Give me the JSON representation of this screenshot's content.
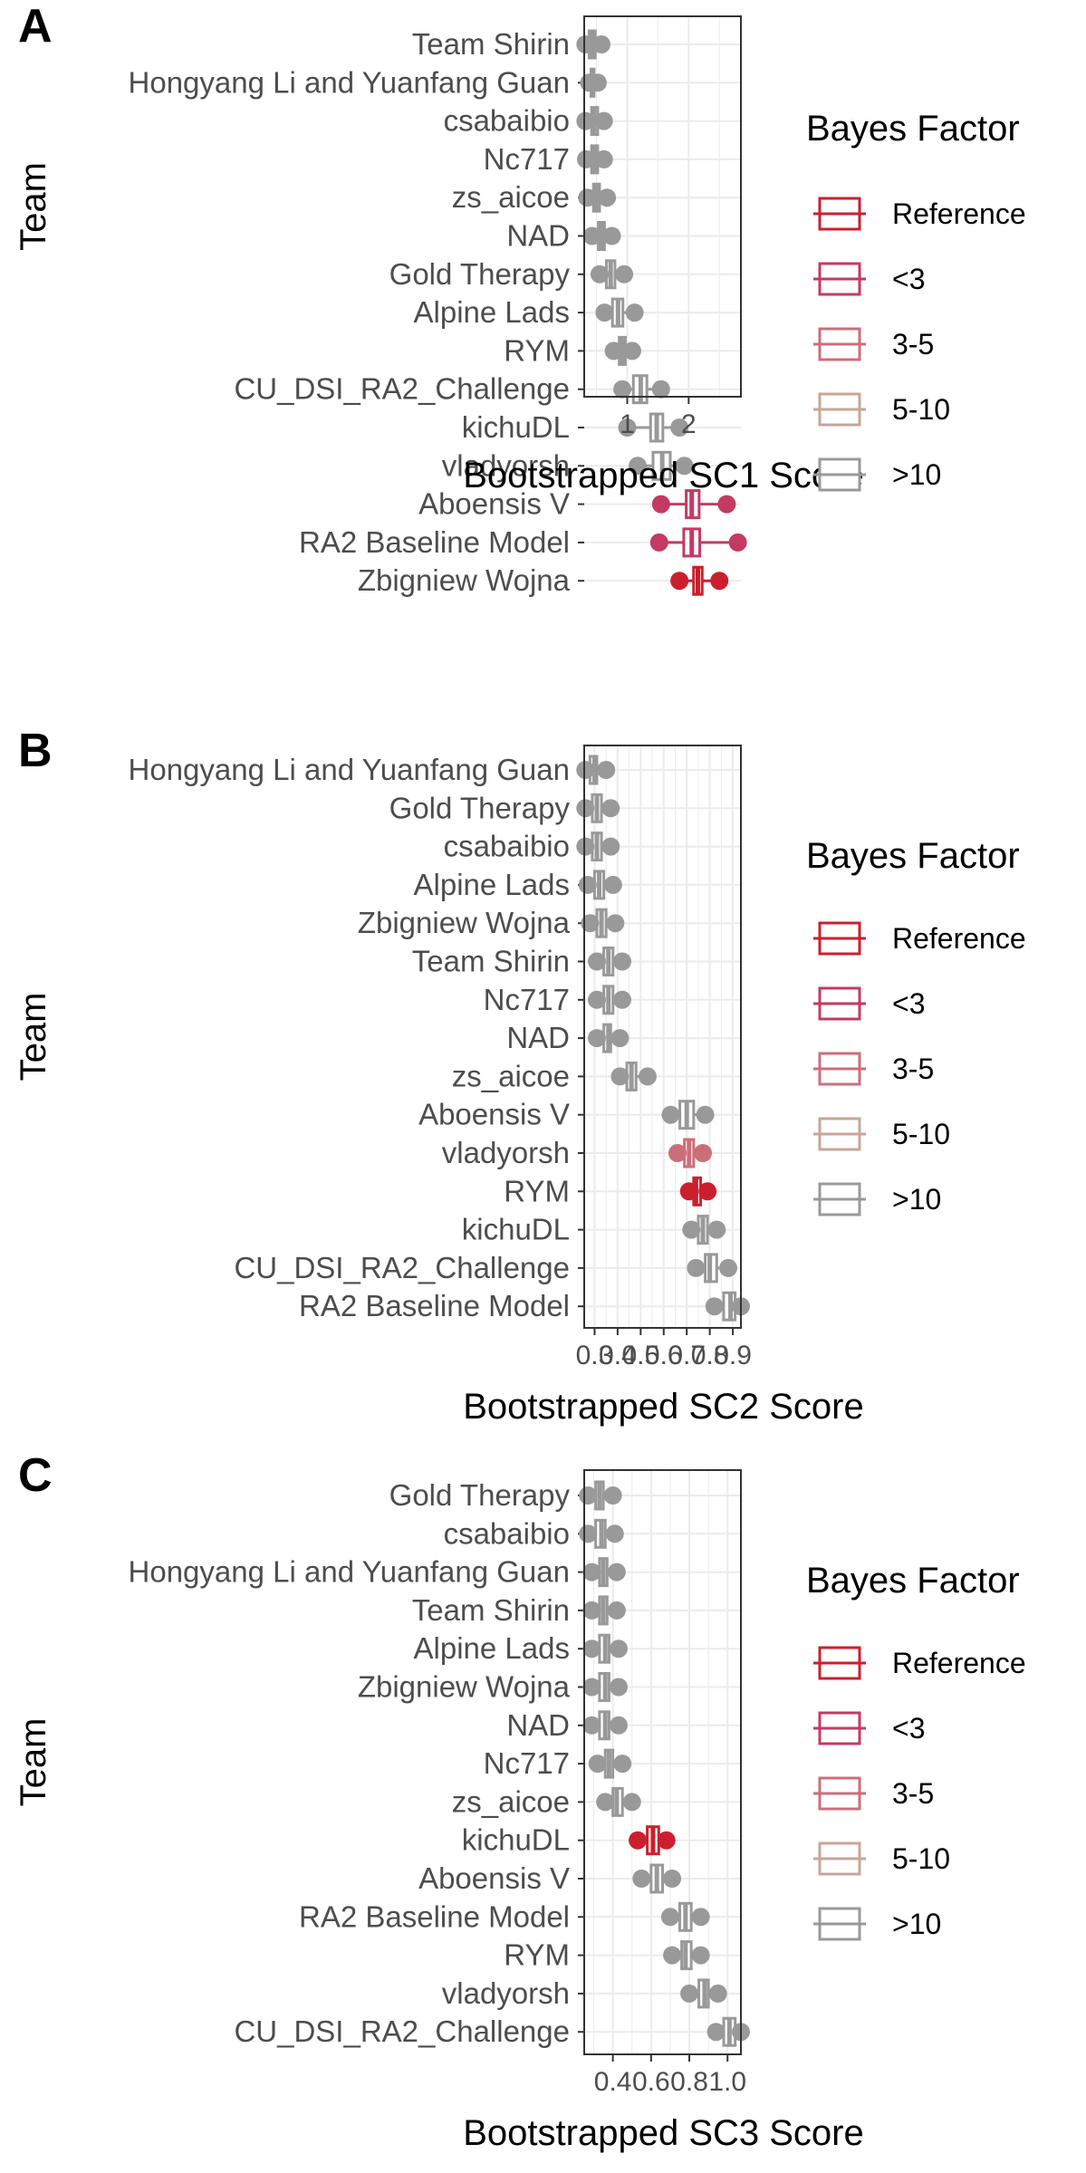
{
  "chart_data": [
    {
      "type": "boxplot",
      "panel": "A",
      "xlabel": "Bootstrapped SC1 Score",
      "ylabel": "Team",
      "xlim": [
        0.3,
        2.85
      ],
      "xticks": [
        1,
        2
      ],
      "xtick_labels": [
        "1",
        "2"
      ],
      "grid": true,
      "legend": {
        "title": "Bayes Factor",
        "placement": "right",
        "entries": [
          "Reference",
          "<3",
          "3-5",
          "5-10",
          ">10"
        ]
      },
      "teams": [
        "Team Shirin",
        "Hongyang Li and Yuanfang Guan",
        "csabaibio",
        "Nc717",
        "zs_aicoe",
        "NAD",
        "Gold Therapy",
        "Alpine Lads",
        "RYM",
        "CU_DSI_RA2_Challenge",
        "kichuDL",
        "vladyorsh",
        "Aboensis V",
        "RA2 Baseline Model",
        "Zbigniew Wojna"
      ],
      "boxes": [
        {
          "min": 0.32,
          "q1": 0.38,
          "median": 0.43,
          "q3": 0.48,
          "max": 0.58,
          "group": ">10"
        },
        {
          "min": 0.38,
          "q1": 0.41,
          "median": 0.43,
          "q3": 0.46,
          "max": 0.52,
          "group": ">10"
        },
        {
          "min": 0.32,
          "q1": 0.42,
          "median": 0.46,
          "q3": 0.52,
          "max": 0.62,
          "group": ">10"
        },
        {
          "min": 0.33,
          "q1": 0.42,
          "median": 0.47,
          "q3": 0.52,
          "max": 0.62,
          "group": ">10"
        },
        {
          "min": 0.35,
          "q1": 0.45,
          "median": 0.5,
          "q3": 0.55,
          "max": 0.67,
          "group": ">10"
        },
        {
          "min": 0.43,
          "q1": 0.53,
          "median": 0.58,
          "q3": 0.63,
          "max": 0.75,
          "group": ">10"
        },
        {
          "min": 0.55,
          "q1": 0.66,
          "median": 0.73,
          "q3": 0.8,
          "max": 0.95,
          "group": ">10"
        },
        {
          "min": 0.63,
          "q1": 0.76,
          "median": 0.85,
          "q3": 0.93,
          "max": 1.12,
          "group": ">10"
        },
        {
          "min": 0.78,
          "q1": 0.87,
          "median": 0.92,
          "q3": 0.97,
          "max": 1.08,
          "group": ">10"
        },
        {
          "min": 0.92,
          "q1": 1.1,
          "median": 1.22,
          "q3": 1.32,
          "max": 1.55,
          "group": ">10"
        },
        {
          "min": 1.0,
          "q1": 1.38,
          "median": 1.48,
          "q3": 1.58,
          "max": 1.85,
          "group": ">10"
        },
        {
          "min": 1.17,
          "q1": 1.42,
          "median": 1.57,
          "q3": 1.7,
          "max": 1.93,
          "group": ">10"
        },
        {
          "min": 1.55,
          "q1": 1.96,
          "median": 2.05,
          "q3": 2.17,
          "max": 2.62,
          "group": "<3"
        },
        {
          "min": 1.52,
          "q1": 1.92,
          "median": 2.05,
          "q3": 2.18,
          "max": 2.8,
          "group": "<3"
        },
        {
          "min": 1.85,
          "q1": 2.08,
          "median": 2.15,
          "q3": 2.22,
          "max": 2.5,
          "group": "Reference"
        }
      ]
    },
    {
      "type": "boxplot",
      "panel": "B",
      "xlabel": "Bootstrapped SC2 Score",
      "ylabel": "Team",
      "xlim": [
        0.255,
        0.935
      ],
      "xticks": [
        0.3,
        0.4,
        0.5,
        0.6,
        0.7,
        0.8,
        0.9
      ],
      "xtick_labels": [
        "0.3",
        "0.4",
        "0.5",
        "0.6",
        "0.7",
        "0.8",
        "0.9"
      ],
      "grid": true,
      "legend": {
        "title": "Bayes Factor",
        "placement": "right",
        "entries": [
          "Reference",
          "<3",
          "3-5",
          "5-10",
          ">10"
        ]
      },
      "teams": [
        "Hongyang Li and Yuanfang Guan",
        "Gold Therapy",
        "csabaibio",
        "Alpine Lads",
        "Zbigniew Wojna",
        "Team Shirin",
        "Nc717",
        "NAD",
        "zs_aicoe",
        "Aboensis V",
        "vladyorsh",
        "RYM",
        "kichuDL",
        "CU_DSI_RA2_Challenge",
        "RA2 Baseline Model"
      ],
      "boxes": [
        {
          "min": 0.26,
          "q1": 0.28,
          "median": 0.3,
          "q3": 0.31,
          "max": 0.35,
          "group": ">10"
        },
        {
          "min": 0.26,
          "q1": 0.29,
          "median": 0.31,
          "q3": 0.33,
          "max": 0.37,
          "group": ">10"
        },
        {
          "min": 0.26,
          "q1": 0.29,
          "median": 0.31,
          "q3": 0.33,
          "max": 0.37,
          "group": ">10"
        },
        {
          "min": 0.27,
          "q1": 0.3,
          "median": 0.32,
          "q3": 0.34,
          "max": 0.38,
          "group": ">10"
        },
        {
          "min": 0.28,
          "q1": 0.31,
          "median": 0.33,
          "q3": 0.35,
          "max": 0.39,
          "group": ">10"
        },
        {
          "min": 0.31,
          "q1": 0.34,
          "median": 0.36,
          "q3": 0.38,
          "max": 0.42,
          "group": ">10"
        },
        {
          "min": 0.31,
          "q1": 0.34,
          "median": 0.36,
          "q3": 0.38,
          "max": 0.42,
          "group": ">10"
        },
        {
          "min": 0.31,
          "q1": 0.34,
          "median": 0.36,
          "q3": 0.37,
          "max": 0.41,
          "group": ">10"
        },
        {
          "min": 0.41,
          "q1": 0.44,
          "median": 0.46,
          "q3": 0.48,
          "max": 0.53,
          "group": ">10"
        },
        {
          "min": 0.63,
          "q1": 0.67,
          "median": 0.7,
          "q3": 0.73,
          "max": 0.78,
          "group": ">10"
        },
        {
          "min": 0.66,
          "q1": 0.69,
          "median": 0.71,
          "q3": 0.73,
          "max": 0.77,
          "group": "3-5"
        },
        {
          "min": 0.71,
          "q1": 0.73,
          "median": 0.74,
          "q3": 0.76,
          "max": 0.79,
          "group": "Reference"
        },
        {
          "min": 0.72,
          "q1": 0.75,
          "median": 0.77,
          "q3": 0.79,
          "max": 0.83,
          "group": ">10"
        },
        {
          "min": 0.74,
          "q1": 0.78,
          "median": 0.8,
          "q3": 0.83,
          "max": 0.88,
          "group": ">10"
        },
        {
          "min": 0.82,
          "q1": 0.86,
          "median": 0.89,
          "q3": 0.91,
          "max": 0.935,
          "group": ">10"
        }
      ]
    },
    {
      "type": "boxplot",
      "panel": "C",
      "xlabel": "Bootstrapped SC3 Score",
      "ylabel": "Team",
      "xlim": [
        0.25,
        1.07
      ],
      "xticks": [
        0.4,
        0.6,
        0.8,
        1.0
      ],
      "xtick_labels": [
        "0.4",
        "0.6",
        "0.8",
        "1.0"
      ],
      "grid": true,
      "legend": {
        "title": "Bayes Factor",
        "placement": "right",
        "entries": [
          "Reference",
          "<3",
          "3-5",
          "5-10",
          ">10"
        ]
      },
      "teams": [
        "Gold Therapy",
        "csabaibio",
        "Hongyang Li and Yuanfang Guan",
        "Team Shirin",
        "Alpine Lads",
        "Zbigniew Wojna",
        "NAD",
        "Nc717",
        "zs_aicoe",
        "kichuDL",
        "Aboensis V",
        "RA2 Baseline Model",
        "RYM",
        "vladyorsh",
        "CU_DSI_RA2_Challenge"
      ],
      "boxes": [
        {
          "min": 0.27,
          "q1": 0.31,
          "median": 0.33,
          "q3": 0.35,
          "max": 0.4,
          "group": ">10"
        },
        {
          "min": 0.27,
          "q1": 0.31,
          "median": 0.34,
          "q3": 0.36,
          "max": 0.41,
          "group": ">10"
        },
        {
          "min": 0.29,
          "q1": 0.33,
          "median": 0.35,
          "q3": 0.37,
          "max": 0.42,
          "group": ">10"
        },
        {
          "min": 0.29,
          "q1": 0.33,
          "median": 0.35,
          "q3": 0.37,
          "max": 0.42,
          "group": ">10"
        },
        {
          "min": 0.29,
          "q1": 0.33,
          "median": 0.36,
          "q3": 0.38,
          "max": 0.43,
          "group": ">10"
        },
        {
          "min": 0.29,
          "q1": 0.33,
          "median": 0.36,
          "q3": 0.38,
          "max": 0.43,
          "group": ">10"
        },
        {
          "min": 0.29,
          "q1": 0.33,
          "median": 0.36,
          "q3": 0.38,
          "max": 0.43,
          "group": ">10"
        },
        {
          "min": 0.32,
          "q1": 0.36,
          "median": 0.38,
          "q3": 0.4,
          "max": 0.45,
          "group": ">10"
        },
        {
          "min": 0.36,
          "q1": 0.4,
          "median": 0.42,
          "q3": 0.45,
          "max": 0.5,
          "group": ">10"
        },
        {
          "min": 0.53,
          "q1": 0.58,
          "median": 0.61,
          "q3": 0.64,
          "max": 0.68,
          "group": "Reference"
        },
        {
          "min": 0.55,
          "q1": 0.6,
          "median": 0.63,
          "q3": 0.66,
          "max": 0.71,
          "group": ">10"
        },
        {
          "min": 0.7,
          "q1": 0.75,
          "median": 0.78,
          "q3": 0.81,
          "max": 0.86,
          "group": ">10"
        },
        {
          "min": 0.71,
          "q1": 0.76,
          "median": 0.78,
          "q3": 0.81,
          "max": 0.86,
          "group": ">10"
        },
        {
          "min": 0.8,
          "q1": 0.85,
          "median": 0.88,
          "q3": 0.9,
          "max": 0.95,
          "group": ">10"
        },
        {
          "min": 0.94,
          "q1": 0.98,
          "median": 1.01,
          "q3": 1.04,
          "max": 1.07,
          "group": ">10"
        }
      ]
    }
  ],
  "colors": {
    "Reference": "#cc1f2e",
    "<3": "#c43a62",
    "3-5": "#cc6e78",
    "5-10": "#c8a598",
    ">10": "#999999",
    "grid": "#ebebeb",
    "frame": "#333333",
    "text": "#4d4d4d"
  }
}
